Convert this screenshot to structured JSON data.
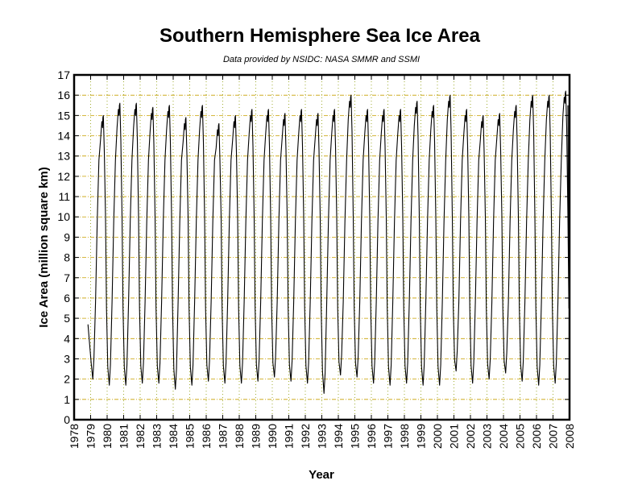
{
  "chart_data": {
    "type": "line",
    "title": "Southern Hemisphere Sea Ice Area",
    "subtitle": "Data provided by NSIDC: NASA SMMR and SSMI",
    "xlabel": "Year",
    "ylabel": "Ice Area (million square km)",
    "xlim": [
      1978,
      2008
    ],
    "ylim": [
      0,
      17
    ],
    "grid": true,
    "x_ticks": [
      1978,
      1979,
      1980,
      1981,
      1982,
      1983,
      1984,
      1985,
      1986,
      1987,
      1988,
      1989,
      1990,
      1991,
      1992,
      1993,
      1994,
      1995,
      1996,
      1997,
      1998,
      1999,
      2000,
      2001,
      2002,
      2003,
      2004,
      2005,
      2006,
      2007,
      2008
    ],
    "y_ticks": [
      0,
      1,
      2,
      3,
      4,
      5,
      6,
      7,
      8,
      9,
      10,
      11,
      12,
      13,
      14,
      15,
      16,
      17
    ],
    "series": [
      {
        "color": "#000000",
        "start": [
          1978.84,
          4.7
        ],
        "annual_cycle": [
          {
            "year": 1979,
            "min": 2.0,
            "max": 15.0
          },
          {
            "year": 1980,
            "min": 1.7,
            "max": 15.6
          },
          {
            "year": 1981,
            "min": 1.7,
            "max": 15.6
          },
          {
            "year": 1982,
            "min": 1.8,
            "max": 15.4
          },
          {
            "year": 1983,
            "min": 1.8,
            "max": 15.5
          },
          {
            "year": 1984,
            "min": 1.5,
            "max": 14.9
          },
          {
            "year": 1985,
            "min": 1.7,
            "max": 15.5
          },
          {
            "year": 1986,
            "min": 1.9,
            "max": 14.6
          },
          {
            "year": 1987,
            "min": 1.8,
            "max": 15.0
          },
          {
            "year": 1988,
            "min": 1.8,
            "max": 15.3
          },
          {
            "year": 1989,
            "min": 1.9,
            "max": 15.3
          },
          {
            "year": 1990,
            "min": 2.1,
            "max": 15.1
          },
          {
            "year": 1991,
            "min": 1.9,
            "max": 15.3
          },
          {
            "year": 1992,
            "min": 1.8,
            "max": 15.1
          },
          {
            "year": 1993,
            "min": 1.3,
            "max": 15.3
          },
          {
            "year": 1994,
            "min": 2.2,
            "max": 16.0
          },
          {
            "year": 1995,
            "min": 2.1,
            "max": 15.3
          },
          {
            "year": 1996,
            "min": 1.8,
            "max": 15.3
          },
          {
            "year": 1997,
            "min": 1.7,
            "max": 15.3
          },
          {
            "year": 1998,
            "min": 1.8,
            "max": 15.7
          },
          {
            "year": 1999,
            "min": 1.7,
            "max": 15.5
          },
          {
            "year": 2000,
            "min": 1.7,
            "max": 16.0
          },
          {
            "year": 2001,
            "min": 2.4,
            "max": 15.3
          },
          {
            "year": 2002,
            "min": 1.8,
            "max": 15.0
          },
          {
            "year": 2003,
            "min": 2.0,
            "max": 15.1
          },
          {
            "year": 2004,
            "min": 2.3,
            "max": 15.5
          },
          {
            "year": 2005,
            "min": 1.9,
            "max": 16.0
          },
          {
            "year": 2006,
            "min": 1.7,
            "max": 16.0
          },
          {
            "year": 2007,
            "min": 1.8,
            "max": 16.2
          }
        ],
        "end": [
          2007.9,
          15.5
        ]
      }
    ]
  }
}
